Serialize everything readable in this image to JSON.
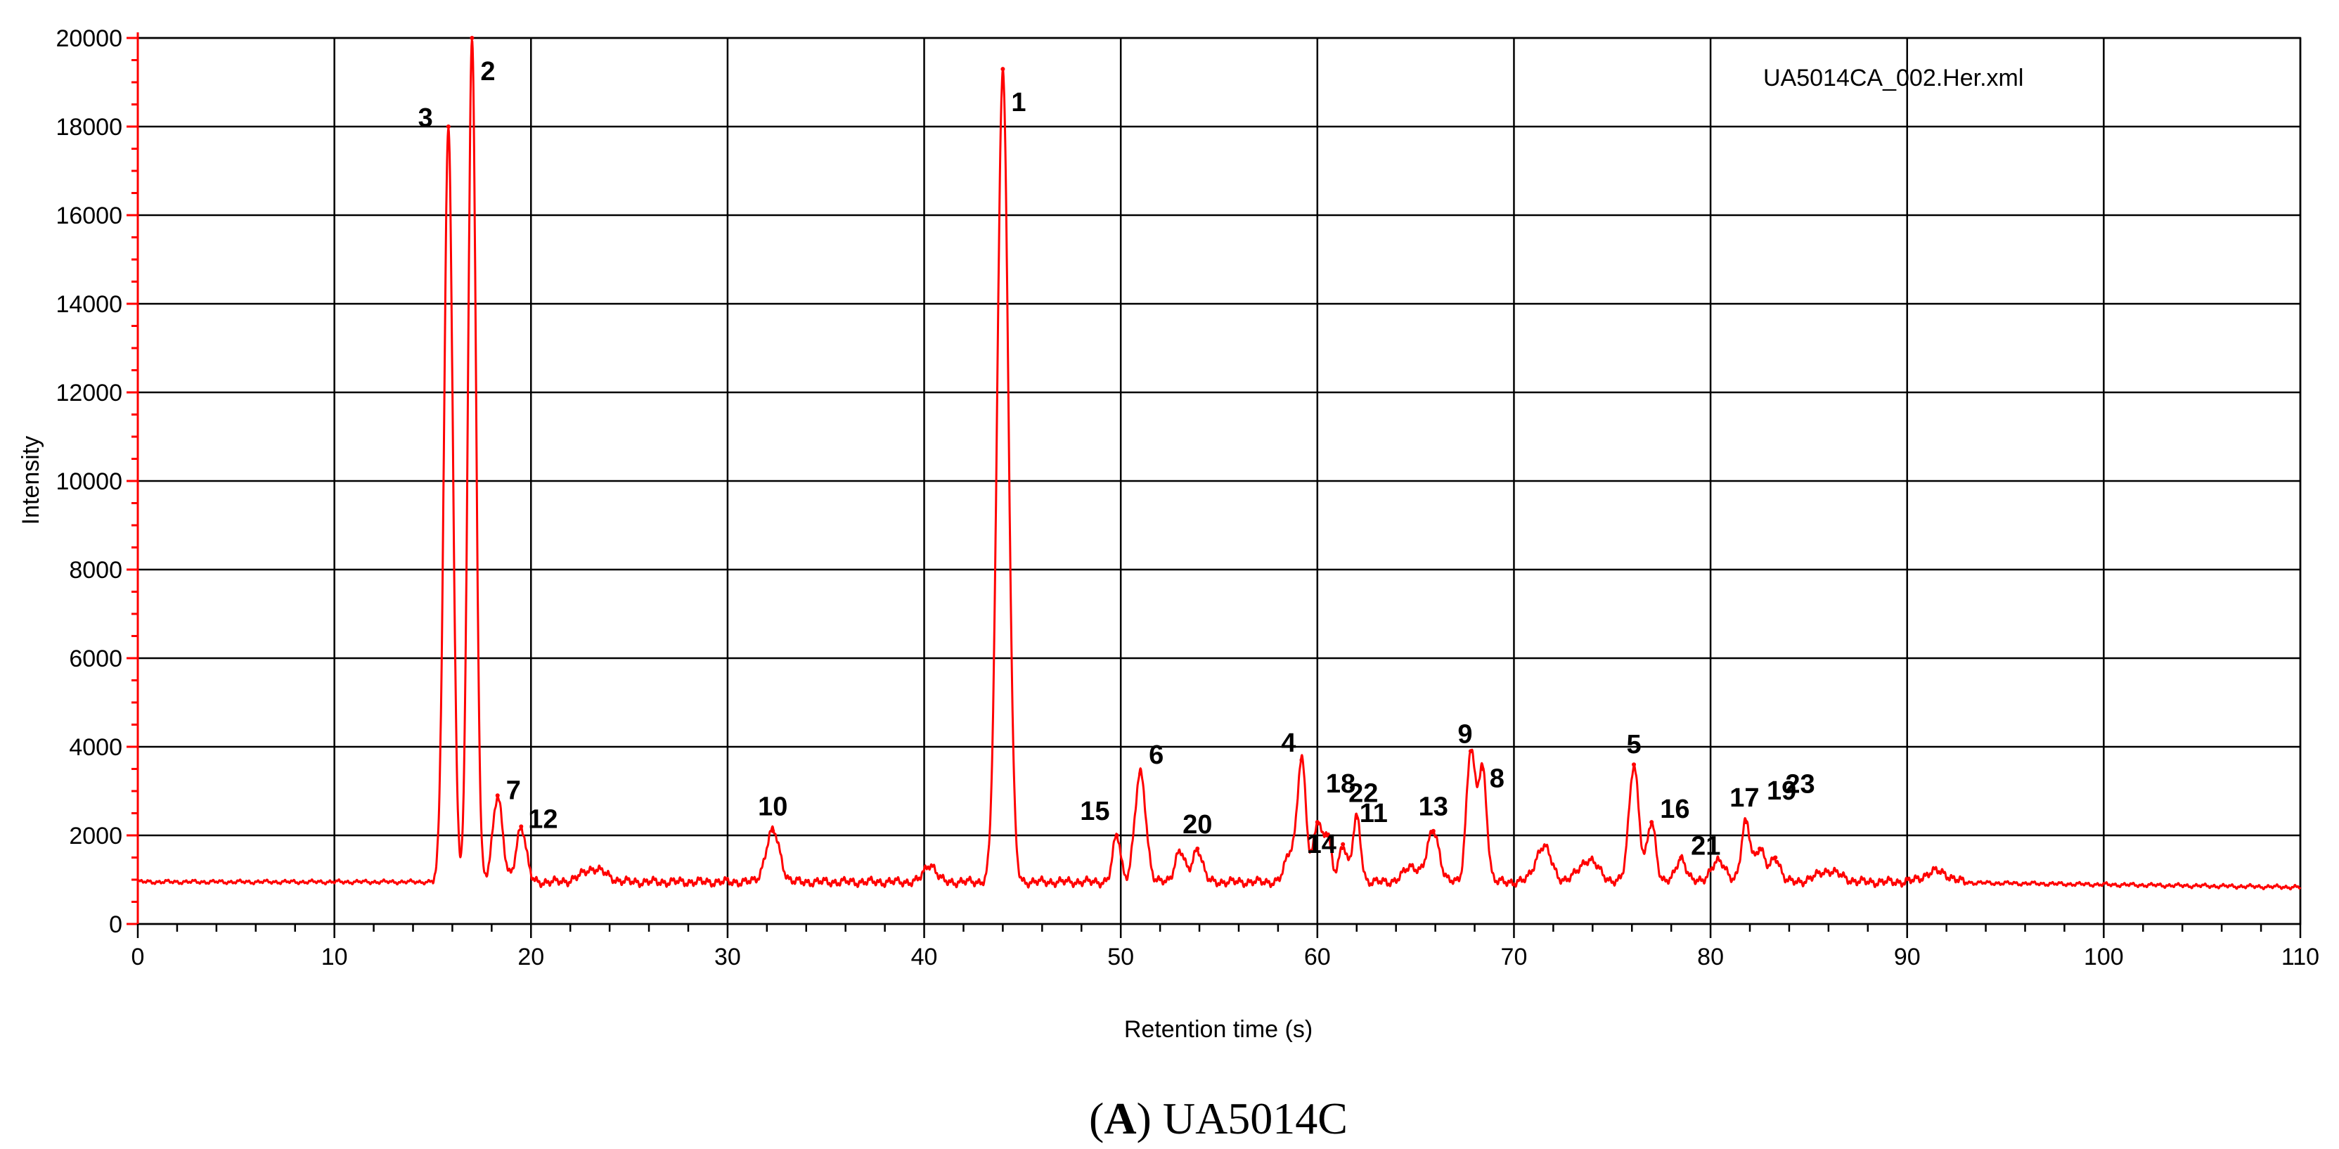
{
  "chart_data": {
    "type": "line",
    "xlabel": "Retention time (s)",
    "ylabel": "Intensity",
    "xlim": [
      0,
      110
    ],
    "ylim": [
      0,
      20000
    ],
    "x_ticks": [
      0,
      10,
      20,
      30,
      40,
      50,
      60,
      70,
      80,
      90,
      100,
      110
    ],
    "y_ticks": [
      0,
      2000,
      4000,
      6000,
      8000,
      10000,
      12000,
      14000,
      16000,
      18000,
      20000
    ],
    "grid": true,
    "file_label": "UA5014CA_002.Her.xml",
    "line_color": "#ff0000",
    "baseline": 950,
    "peaks": [
      {
        "label": "3",
        "x": 15.8,
        "y": 18000,
        "w": 0.22
      },
      {
        "label": "2",
        "x": 17.0,
        "y": 20000,
        "w": 0.2
      },
      {
        "label": "7",
        "x": 18.3,
        "y": 2900,
        "w": 0.25
      },
      {
        "label": "12",
        "x": 19.5,
        "y": 2200,
        "w": 0.25
      },
      {
        "label": "10",
        "x": 32.3,
        "y": 2100,
        "w": 0.35
      },
      {
        "label": "1",
        "x": 44.0,
        "y": 19300,
        "w": 0.28
      },
      {
        "label": "15",
        "x": 49.8,
        "y": 2000,
        "w": 0.2
      },
      {
        "label": "6",
        "x": 51.0,
        "y": 3400,
        "w": 0.28
      },
      {
        "label": "20",
        "x": 53.9,
        "y": 1700,
        "w": 0.25
      },
      {
        "label": "4",
        "x": 59.2,
        "y": 3700,
        "w": 0.22
      },
      {
        "label": "18",
        "x": 60.0,
        "y": 2300,
        "w": 0.2
      },
      {
        "label": "14",
        "x": 60.5,
        "y": 2000,
        "w": 0.2
      },
      {
        "label": "22",
        "x": 61.3,
        "y": 1800,
        "w": 0.2
      },
      {
        "label": "11",
        "x": 62.0,
        "y": 2400,
        "w": 0.2
      },
      {
        "label": "13",
        "x": 65.9,
        "y": 2100,
        "w": 0.3
      },
      {
        "label": "9",
        "x": 67.8,
        "y": 3900,
        "w": 0.22
      },
      {
        "label": "8",
        "x": 68.4,
        "y": 3500,
        "w": 0.22
      },
      {
        "label": "5",
        "x": 76.1,
        "y": 3600,
        "w": 0.25
      },
      {
        "label": "16",
        "x": 77.0,
        "y": 2300,
        "w": 0.22
      },
      {
        "label": "21",
        "x": 78.5,
        "y": 1500,
        "w": 0.25
      },
      {
        "label": "17",
        "x": 81.8,
        "y": 2300,
        "w": 0.22
      },
      {
        "label": "19",
        "x": 82.5,
        "y": 1700,
        "w": 0.25
      },
      {
        "label": "23",
        "x": 83.3,
        "y": 1500,
        "w": 0.25
      }
    ],
    "minor_bumps": [
      {
        "x": 23.2,
        "y": 1250,
        "w": 0.6
      },
      {
        "x": 40.3,
        "y": 1350,
        "w": 0.3
      },
      {
        "x": 53.0,
        "y": 1650,
        "w": 0.25
      },
      {
        "x": 58.6,
        "y": 1600,
        "w": 0.25
      },
      {
        "x": 64.8,
        "y": 1300,
        "w": 0.4
      },
      {
        "x": 71.5,
        "y": 1750,
        "w": 0.4
      },
      {
        "x": 73.8,
        "y": 1450,
        "w": 0.5
      },
      {
        "x": 80.4,
        "y": 1400,
        "w": 0.4
      },
      {
        "x": 86.0,
        "y": 1200,
        "w": 0.6
      },
      {
        "x": 91.5,
        "y": 1200,
        "w": 0.6
      }
    ]
  },
  "caption": {
    "prefix_open": "(",
    "letter": "A",
    "prefix_close": ")",
    "text": " UA5014C"
  }
}
